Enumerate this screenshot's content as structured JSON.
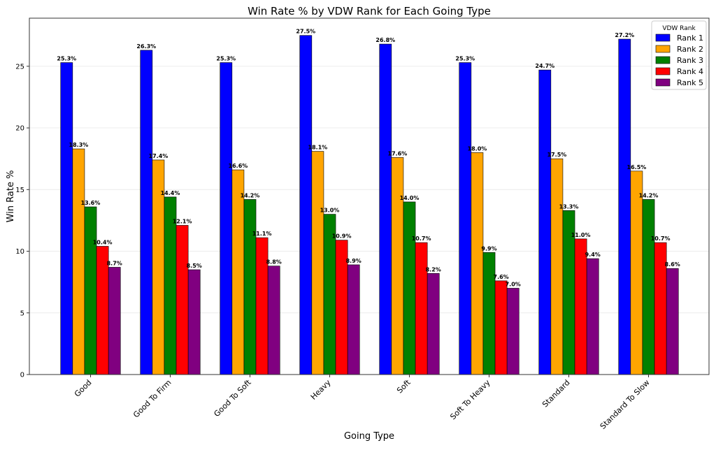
{
  "chart_data": {
    "type": "bar",
    "title": "Win Rate % by VDW Rank for Each Going Type",
    "xlabel": "Going Type",
    "ylabel": "Win Rate %",
    "ylim": [
      0,
      28.9
    ],
    "yticks": [
      0,
      5,
      10,
      15,
      20,
      25
    ],
    "grid": true,
    "legend_title": "VDW Rank",
    "legend_position": "top-right",
    "categories": [
      "Good",
      "Good To Firm",
      "Good To Soft",
      "Heavy",
      "Soft",
      "Soft To Heavy",
      "Standard",
      "Standard To Slow"
    ],
    "series": [
      {
        "name": "Rank 1",
        "color": "#0000ff",
        "values": [
          25.3,
          26.3,
          25.3,
          27.5,
          26.8,
          25.3,
          24.7,
          27.2
        ],
        "labels": [
          "25.3%",
          "26.3%",
          "25.3%",
          "27.5%",
          "26.8%",
          "25.3%",
          "24.7%",
          "27.2%"
        ]
      },
      {
        "name": "Rank 2",
        "color": "#ffa500",
        "values": [
          18.3,
          17.4,
          16.6,
          18.1,
          17.6,
          18.0,
          17.5,
          16.5
        ],
        "labels": [
          "18.3%",
          "17.4%",
          "16.6%",
          "18.1%",
          "17.6%",
          "18.0%",
          "17.5%",
          "16.5%"
        ]
      },
      {
        "name": "Rank 3",
        "color": "#008000",
        "values": [
          13.6,
          14.4,
          14.2,
          13.0,
          14.0,
          9.9,
          13.3,
          14.2
        ],
        "labels": [
          "13.6%",
          "14.4%",
          "14.2%",
          "13.0%",
          "14.0%",
          "9.9%",
          "13.3%",
          "14.2%"
        ]
      },
      {
        "name": "Rank 4",
        "color": "#ff0000",
        "values": [
          10.4,
          12.1,
          11.1,
          10.9,
          10.7,
          7.6,
          11.0,
          10.7
        ],
        "labels": [
          "10.4%",
          "12.1%",
          "11.1%",
          "10.9%",
          "10.7%",
          "7.6%",
          "11.0%",
          "10.7%"
        ]
      },
      {
        "name": "Rank 5",
        "color": "#800080",
        "values": [
          8.7,
          8.5,
          8.8,
          8.9,
          8.2,
          7.0,
          9.4,
          8.6
        ],
        "labels": [
          "8.7%",
          "8.5%",
          "8.8%",
          "8.9%",
          "8.2%",
          "7.0%",
          "9.4%",
          "8.6%"
        ]
      }
    ]
  }
}
